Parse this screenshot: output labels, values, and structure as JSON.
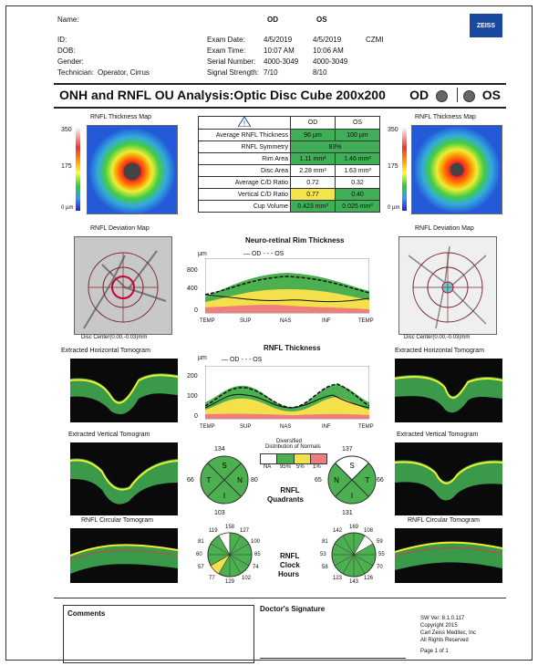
{
  "header": {
    "name_label": "Name:",
    "id_label": "ID:",
    "dob_label": "DOB:",
    "gender_label": "Gender:",
    "technician_label": "Technician:",
    "technician_value": "Operator, Cirrus",
    "od": "OD",
    "os": "OS",
    "exam_date_label": "Exam Date:",
    "exam_time_label": "Exam Time:",
    "serial_label": "Serial Number:",
    "signal_label": "Signal Strength:",
    "od_exam_date": "4/5/2019",
    "os_exam_date": "4/5/2019",
    "czmi": "CZMI",
    "od_exam_time": "10:07 AM",
    "os_exam_time": "10:06 AM",
    "od_serial": "4000-3049",
    "os_serial": "4000-3049",
    "od_signal": "7/10",
    "os_signal": "8/10",
    "logo": "ZEISS"
  },
  "title": "ONH and RNFL OU Analysis:Optic Disc Cube 200x200",
  "eye_od": "OD",
  "eye_os": "OS",
  "maps": {
    "thickness_title": "RNFL Thickness Map",
    "deviation_title": "RNFL Deviation Map",
    "scale_350": "350",
    "scale_175": "175",
    "scale_0": "0 µm",
    "disc_center": "Disc Center(0.00,-0.03)mm"
  },
  "table": {
    "header_od": "OD",
    "header_os": "OS",
    "rows": [
      {
        "label": "Average RNFL Thickness",
        "od": "96 µm",
        "os": "100 µm",
        "od_c": "g",
        "os_c": "g"
      },
      {
        "label": "RNFL Symmetry",
        "span": "83%",
        "span_c": "g"
      },
      {
        "label": "Rim Area",
        "od": "1.11 mm²",
        "os": "1.46 mm²",
        "od_c": "g",
        "os_c": "g"
      },
      {
        "label": "Disc Area",
        "od": "2.28 mm²",
        "os": "1.63 mm²",
        "od_c": "w",
        "os_c": "w"
      },
      {
        "label": "Average C/D Ratio",
        "od": "0.72",
        "os": "0.32",
        "od_c": "w",
        "os_c": "w"
      },
      {
        "label": "Vertical C/D Ratio",
        "od": "0.77",
        "os": "0.40",
        "od_c": "y",
        "os_c": "g"
      },
      {
        "label": "Cup Volume",
        "od": "0.423 mm³",
        "os": "0.025 mm³",
        "od_c": "g",
        "os_c": "g"
      }
    ]
  },
  "rim_chart": {
    "title": "Neuro-retinal Rim Thickness",
    "unit": "µm",
    "legend_od": "OD",
    "legend_os": "OS",
    "yticks": [
      "800",
      "400",
      "0"
    ],
    "xticks": [
      "TEMP",
      "SUP",
      "NAS",
      "INF",
      "TEMP"
    ]
  },
  "rnfl_chart": {
    "title": "RNFL Thickness",
    "unit": "µm",
    "legend_od": "OD",
    "legend_os": "OS",
    "yticks": [
      "200",
      "100",
      "0"
    ],
    "xticks": [
      "TEMP",
      "SUP",
      "NAS",
      "INF",
      "TEMP"
    ]
  },
  "tomograms": {
    "horizontal": "Extracted Horizontal Tomogram",
    "vertical": "Extracted Vertical Tomogram",
    "circular": "RNFL Circular Tomogram"
  },
  "distribution": {
    "title1": "Distribution of Normals",
    "title0": "Diversified",
    "labels": [
      "NA",
      "95%",
      "5%",
      "1%"
    ]
  },
  "quadrants": {
    "title1": "RNFL",
    "title2": "Quadrants",
    "od": {
      "S": "134",
      "N": "80",
      "I": "103",
      "T": "66"
    },
    "os": {
      "S": "137",
      "N": "66",
      "I": "131",
      "T": "65"
    }
  },
  "clock": {
    "title1": "RNFL",
    "title2": "Clock",
    "title3": "Hours",
    "od": [
      "158",
      "127",
      "100",
      "65",
      "74",
      "102",
      "129",
      "77",
      "57",
      "60",
      "81",
      "119"
    ],
    "os": [
      "169",
      "108",
      "59",
      "55",
      "70",
      "126",
      "143",
      "123",
      "58",
      "53",
      "81",
      "142"
    ]
  },
  "footer": {
    "comments": "Comments",
    "signature": "Doctor's Signature",
    "sw": "SW Ver: 8.1.0.117",
    "copyright": "Copyright 2015",
    "company": "Carl Zeiss Meditec, Inc",
    "rights": "All Rights Reserved",
    "page": "Page 1 of 1"
  }
}
